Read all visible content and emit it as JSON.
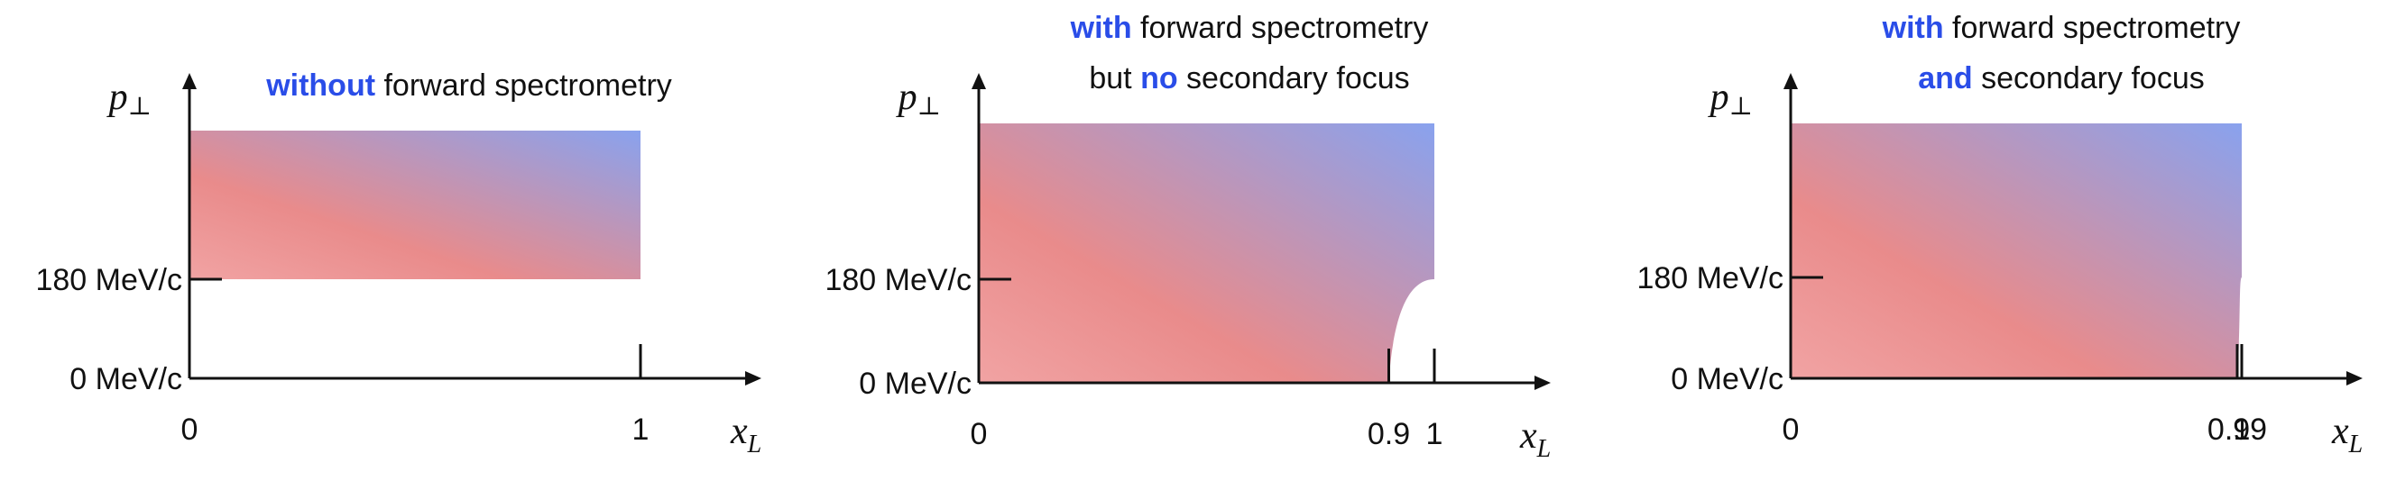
{
  "panels": [
    {
      "id": "without",
      "title_lines": [
        [
          {
            "text": "without",
            "highlight": true
          },
          {
            "text": " forward spectrometry",
            "highlight": false
          }
        ]
      ],
      "y_axis_label": "p⊥",
      "y_axis_label_main": "p",
      "y_axis_label_sub": "⊥",
      "x_axis_label_main": "x",
      "x_axis_label_sub": "L",
      "y_ticks": [
        {
          "value": 0,
          "label": "0 MeV/c"
        },
        {
          "value": 180,
          "label": "180 MeV/c"
        }
      ],
      "x_ticks": [
        {
          "value": 0,
          "label": "0"
        },
        {
          "value": 1,
          "label": "1"
        }
      ],
      "region": {
        "x_range": [
          0,
          1
        ],
        "pt_min_mev": 180,
        "cutout_start_x": null
      }
    },
    {
      "id": "no-secondary",
      "title_lines": [
        [
          {
            "text": "with",
            "highlight": true
          },
          {
            "text": " forward spectrometry",
            "highlight": false
          }
        ],
        [
          {
            "text": "but ",
            "highlight": false
          },
          {
            "text": "no",
            "highlight": true
          },
          {
            "text": " secondary focus",
            "highlight": false
          }
        ]
      ],
      "y_axis_label_main": "p",
      "y_axis_label_sub": "⊥",
      "x_axis_label_main": "x",
      "x_axis_label_sub": "L",
      "y_ticks": [
        {
          "value": 0,
          "label": "0 MeV/c"
        },
        {
          "value": 180,
          "label": "180 MeV/c"
        }
      ],
      "x_ticks": [
        {
          "value": 0,
          "label": "0"
        },
        {
          "value": 0.9,
          "label": "0.9"
        },
        {
          "value": 1,
          "label": "1"
        }
      ],
      "region": {
        "x_range": [
          0,
          1
        ],
        "pt_min_mev": 0,
        "cutout_start_x": 0.9
      }
    },
    {
      "id": "secondary",
      "title_lines": [
        [
          {
            "text": "with",
            "highlight": true
          },
          {
            "text": " forward spectrometry",
            "highlight": false
          }
        ],
        [
          {
            "text": "and",
            "highlight": true
          },
          {
            "text": " secondary focus",
            "highlight": false
          }
        ]
      ],
      "y_axis_label_main": "p",
      "y_axis_label_sub": "⊥",
      "x_axis_label_main": "x",
      "x_axis_label_sub": "L",
      "y_ticks": [
        {
          "value": 0,
          "label": "0 MeV/c"
        },
        {
          "value": 180,
          "label": "180 MeV/c"
        }
      ],
      "x_ticks": [
        {
          "value": 0,
          "label": "0"
        },
        {
          "value": 0.99,
          "label": "0.99"
        },
        {
          "value": 1,
          "label": "1"
        }
      ],
      "region": {
        "x_range": [
          0,
          1
        ],
        "pt_min_mev": 0,
        "cutout_start_x": 0.99
      }
    }
  ],
  "colors": {
    "gradient_low": "#f1a3a3",
    "gradient_mid": "#e98b8b",
    "gradient_high": "#89a2ee",
    "highlight": "#2a4de8",
    "axis": "#111111"
  }
}
